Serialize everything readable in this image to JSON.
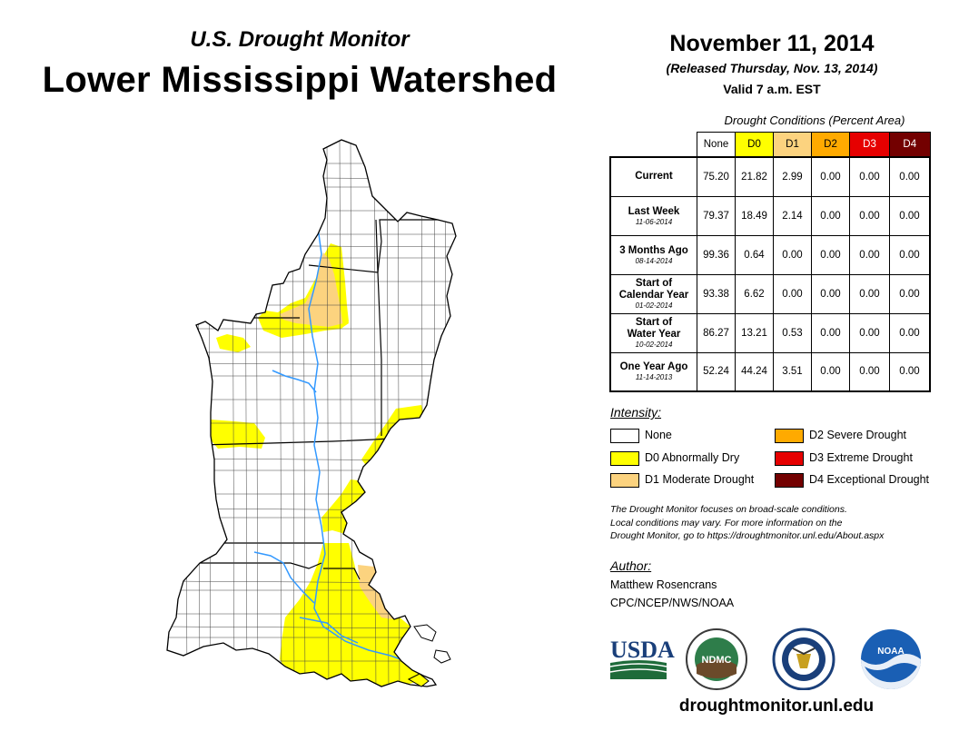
{
  "header": {
    "subtitle": "U.S. Drought Monitor",
    "title": "Lower Mississippi Watershed",
    "date": "November 11, 2014",
    "released": "(Released Thursday, Nov. 13, 2014)",
    "valid": "Valid 7 a.m. EST"
  },
  "conditions": {
    "caption": "Drought Conditions (Percent Area)",
    "columns": [
      {
        "label": "None",
        "color": "#ffffff",
        "text_color": "#000000"
      },
      {
        "label": "D0",
        "color": "#ffff00",
        "text_color": "#000000"
      },
      {
        "label": "D1",
        "color": "#fcd37f",
        "text_color": "#000000"
      },
      {
        "label": "D2",
        "color": "#ffaa00",
        "text_color": "#000000"
      },
      {
        "label": "D3",
        "color": "#e60000",
        "text_color": "#ffffff"
      },
      {
        "label": "D4",
        "color": "#730000",
        "text_color": "#ffffff"
      }
    ],
    "rows": [
      {
        "label": "Current",
        "label2": "",
        "date": "",
        "values": [
          "75.20",
          "21.82",
          "2.99",
          "0.00",
          "0.00",
          "0.00"
        ]
      },
      {
        "label": "Last Week",
        "label2": "",
        "date": "11-06-2014",
        "values": [
          "79.37",
          "18.49",
          "2.14",
          "0.00",
          "0.00",
          "0.00"
        ]
      },
      {
        "label": "3 Months Ago",
        "label2": "",
        "date": "08-14-2014",
        "values": [
          "99.36",
          "0.64",
          "0.00",
          "0.00",
          "0.00",
          "0.00"
        ]
      },
      {
        "label": "Start of",
        "label2": "Calendar Year",
        "date": "01-02-2014",
        "values": [
          "93.38",
          "6.62",
          "0.00",
          "0.00",
          "0.00",
          "0.00"
        ]
      },
      {
        "label": "Start of",
        "label2": "Water Year",
        "date": "10-02-2014",
        "values": [
          "86.27",
          "13.21",
          "0.53",
          "0.00",
          "0.00",
          "0.00"
        ]
      },
      {
        "label": "One Year Ago",
        "label2": "",
        "date": "11-14-2013",
        "values": [
          "52.24",
          "44.24",
          "3.51",
          "0.00",
          "0.00",
          "0.00"
        ]
      }
    ]
  },
  "legend": {
    "title": "Intensity:",
    "items": [
      {
        "label": "None",
        "color": "#ffffff"
      },
      {
        "label": "D0 Abnormally Dry",
        "color": "#ffff00"
      },
      {
        "label": "D1 Moderate Drought",
        "color": "#fcd37f"
      },
      {
        "label": "D2 Severe Drought",
        "color": "#ffaa00"
      },
      {
        "label": "D3 Extreme Drought",
        "color": "#e60000"
      },
      {
        "label": "D4 Exceptional Drought",
        "color": "#730000"
      }
    ]
  },
  "note": {
    "line1": "The Drought Monitor focuses on broad-scale conditions.",
    "line2": "Local conditions may vary. For more information on the",
    "line3": "Drought Monitor, go to https://droughtmonitor.unl.edu/About.aspx"
  },
  "author": {
    "title": "Author:",
    "name": "Matthew Rosencrans",
    "org": "CPC/NCEP/NWS/NOAA"
  },
  "logos": {
    "usda": "USDA",
    "ndmc": "NDMC",
    "noaa": "NOAA"
  },
  "footer": {
    "url": "droughtmonitor.unl.edu"
  },
  "map": {
    "river_color": "#3399ff"
  }
}
